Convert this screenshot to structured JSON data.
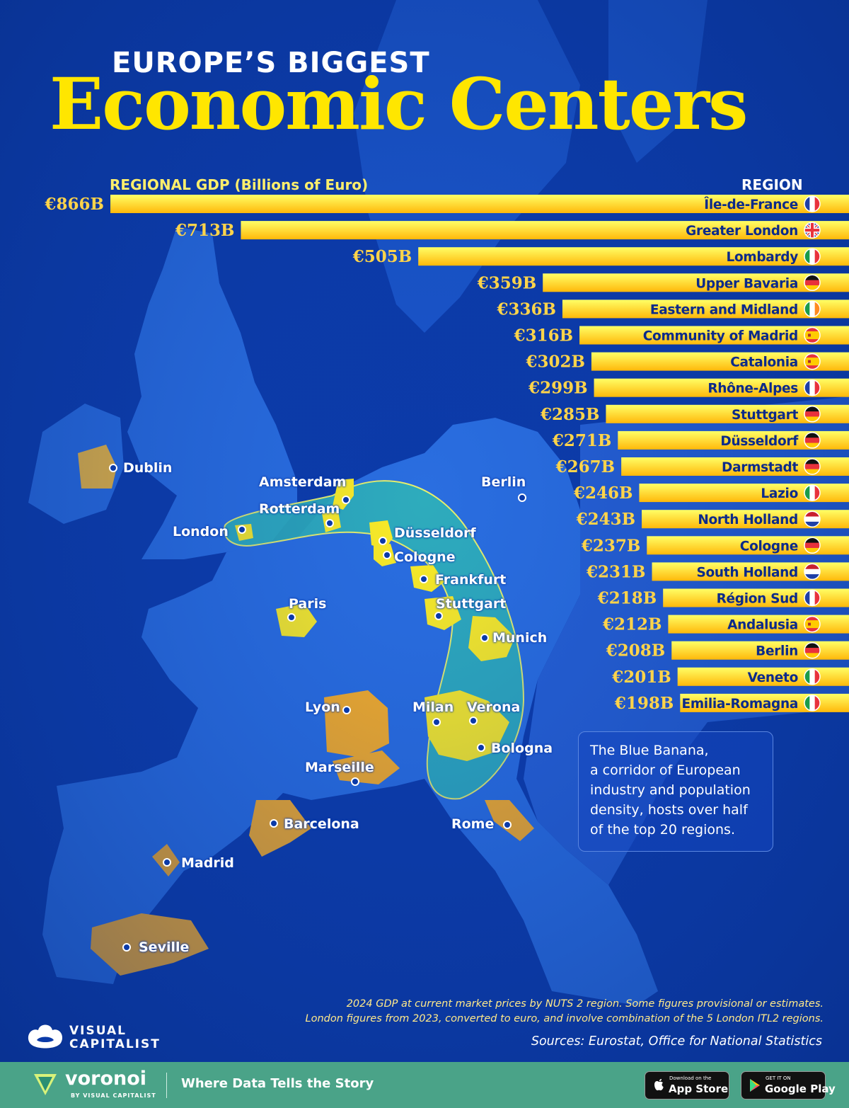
{
  "header": {
    "title_small": "EUROPE’S BIGGEST",
    "title_big": "Economic Centers"
  },
  "chart_data": {
    "type": "bar",
    "orientation": "horizontal",
    "xlabel": "REGIONAL GDP (Billions of Euro)",
    "category_header": "REGION",
    "unit_prefix": "€",
    "unit_suffix": "B",
    "categories": [
      "Île-de-France",
      "Greater London",
      "Lombardy",
      "Upper Bavaria",
      "Eastern and Midland",
      "Community of Madrid",
      "Catalonia",
      "Rhône-Alpes",
      "Stuttgart",
      "Düsseldorf",
      "Darmstadt",
      "Lazio",
      "North Holland",
      "Cologne",
      "South Holland",
      "Région Sud",
      "Andalusia",
      "Berlin",
      "Veneto",
      "Emilia-Romagna"
    ],
    "values": [
      866,
      713,
      505,
      359,
      336,
      316,
      302,
      299,
      285,
      271,
      267,
      246,
      243,
      237,
      231,
      218,
      212,
      208,
      201,
      198
    ],
    "value_labels": [
      "€866B",
      "€713B",
      "€505B",
      "€359B",
      "€336B",
      "€316B",
      "€302B",
      "€299B",
      "€285B",
      "€271B",
      "€267B",
      "€246B",
      "€243B",
      "€237B",
      "€231B",
      "€218B",
      "€212B",
      "€208B",
      "€201B",
      "€198B"
    ],
    "flags": [
      "france",
      "uk",
      "italy",
      "germany",
      "ireland",
      "spain",
      "spain",
      "france",
      "germany",
      "germany",
      "germany",
      "italy",
      "netherlands",
      "germany",
      "netherlands",
      "france",
      "spain",
      "germany",
      "italy",
      "italy"
    ],
    "bar_color_top": "#ffff66",
    "bar_color_bottom": "#ffb80a",
    "label_color": "#ffd44a"
  },
  "map": {
    "cities": [
      "Dublin",
      "Amsterdam",
      "Rotterdam",
      "London",
      "Berlin",
      "Düsseldorf",
      "Cologne",
      "Frankfurt",
      "Paris",
      "Stuttgart",
      "Munich",
      "Lyon",
      "Milan",
      "Verona",
      "Bologna",
      "Marseille",
      "Barcelona",
      "Rome",
      "Madrid",
      "Seville"
    ],
    "callout": [
      "The Blue Banana,",
      "a corridor of European",
      "industry and population",
      "density, hosts over half",
      "of the top 20 regions."
    ],
    "colors": {
      "sea": "#0b3aa8",
      "land": "#2a6ee0",
      "banana": "#2fb3b8",
      "region_yellow": "#ffee22",
      "region_orange": "#ffb020"
    }
  },
  "notes": [
    "2024 GDP at current market prices by NUTS 2 region. Some figures provisional or estimates.",
    "London figures from 2023, converted to euro, and involve combination of the 5 London ITL2 regions."
  ],
  "sources": "Sources: Eurostat, Office for National Statistics",
  "brand": {
    "vc_line1": "VISUAL",
    "vc_line2": "CAPITALIST",
    "voronoi": "voronoi",
    "voronoi_sub": "BY VISUAL CAPITALIST",
    "tagline": "Where Data Tells the Story",
    "appstore_small": "Download on the",
    "appstore_big": "App Store",
    "googleplay_small": "GET IT ON",
    "googleplay_big": "Google Play"
  }
}
